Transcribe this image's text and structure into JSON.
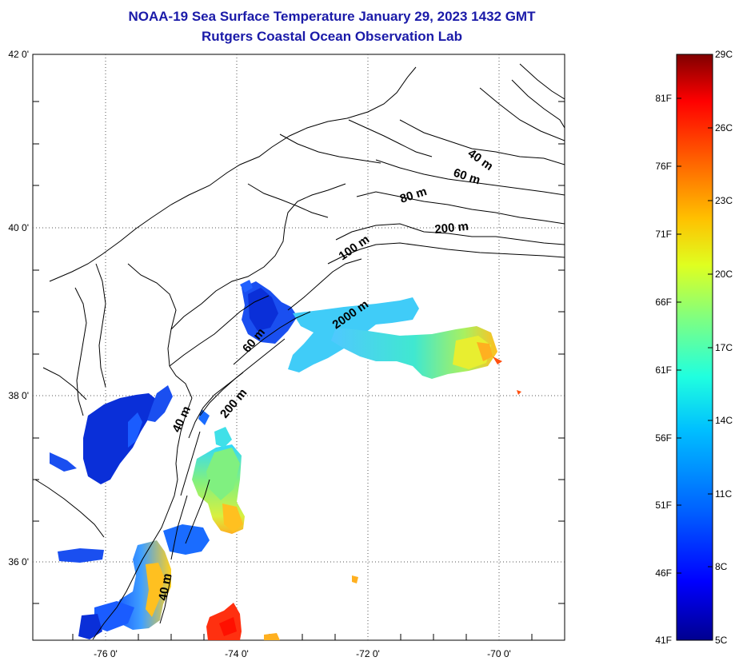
{
  "title_line1": "NOAA-19 Sea Surface Temperature January 29, 2023 1432 GMT",
  "title_line2": "Rutgers Coastal Ocean Observation Lab",
  "lat_ticks": [
    "42 0'",
    "40 0'",
    "38 0'",
    "36 0'"
  ],
  "lon_ticks": [
    "-76 0'",
    "-74 0'",
    "-72 0'",
    "-70 0'"
  ],
  "contour_labels": [
    "40 m",
    "60 m",
    "80 m",
    "200 m",
    "100 m",
    "2000 m",
    "60 m",
    "200 m",
    "40 m",
    "40 m"
  ],
  "colorbar": {
    "fahrenheit_labels": [
      "81F",
      "76F",
      "71F",
      "66F",
      "61F",
      "56F",
      "51F",
      "46F",
      "41F"
    ],
    "celsius_labels": [
      "29C",
      "26C",
      "23C",
      "20C",
      "17C",
      "14C",
      "11C",
      "8C",
      "5C"
    ],
    "colors": [
      "#00008f",
      "#0000ff",
      "#0060ff",
      "#00c0ff",
      "#20ffdf",
      "#80ff80",
      "#dfff20",
      "#ffc000",
      "#ff6000",
      "#ff0000",
      "#800000"
    ]
  },
  "colors": {
    "title": "#1a1aa8",
    "land": "#ffffff",
    "coast": "#000000"
  }
}
